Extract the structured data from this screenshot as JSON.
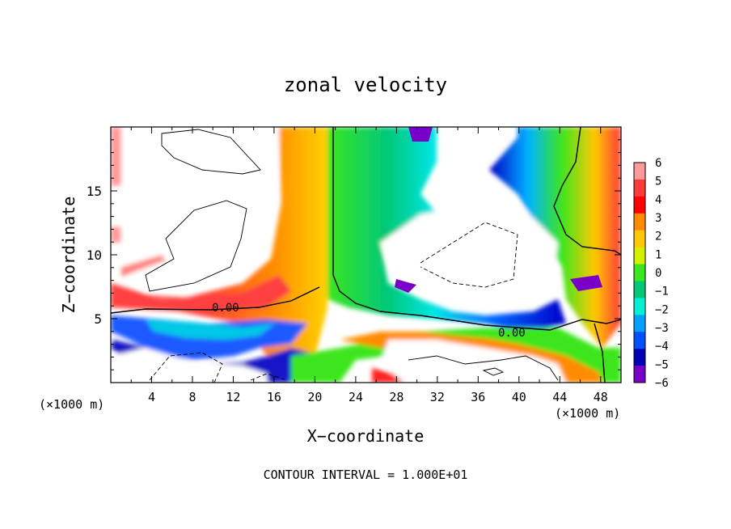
{
  "chart_data": {
    "type": "heatmap",
    "title": "zonal velocity",
    "xlabel": "X−coordinate",
    "ylabel": "Z−coordinate",
    "x_unit_left": "(×1000 m)",
    "x_unit_right": "(×1000 m)",
    "xlim": [
      0,
      50
    ],
    "ylim": [
      0,
      20
    ],
    "x_ticks": [
      "4",
      "8",
      "12",
      "16",
      "20",
      "24",
      "28",
      "32",
      "36",
      "40",
      "44",
      "48"
    ],
    "y_ticks": [
      "5",
      "10",
      "15"
    ],
    "colorbar": {
      "labels": [
        "6",
        "5",
        "4",
        "3",
        "2",
        "1",
        "0",
        "−1",
        "−2",
        "−3",
        "−4",
        "−5",
        "−6"
      ],
      "colors": [
        "#ff9a9a",
        "#ff3a3a",
        "#ff0000",
        "#ff8c00",
        "#ffc800",
        "#d2f000",
        "#3ce61e",
        "#00c878",
        "#00f0d2",
        "#00a0ff",
        "#0050ff",
        "#0000b4",
        "#7800c8"
      ]
    },
    "contour_labels": [
      "0.00",
      "0.00"
    ],
    "footer": "CONTOUR INTERVAL = 1.000E+01"
  }
}
